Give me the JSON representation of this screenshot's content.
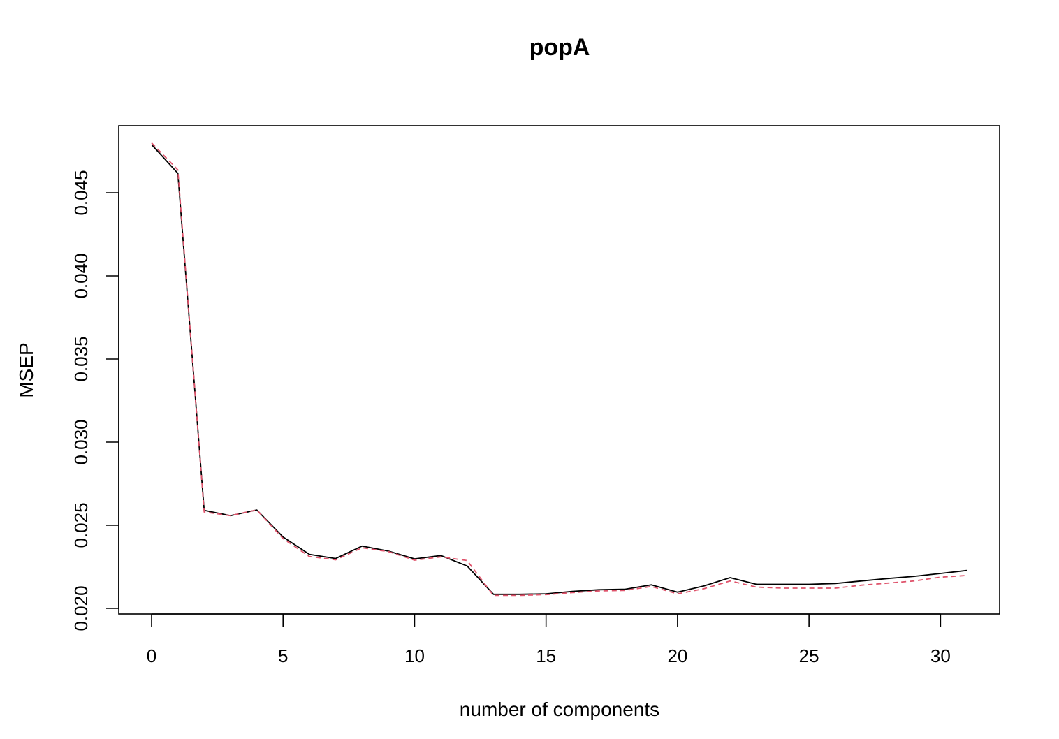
{
  "chart_data": {
    "type": "line",
    "title": "popA",
    "xlabel": "number of components",
    "ylabel": "MSEP",
    "xlim": [
      0,
      31
    ],
    "ylim": [
      0.02,
      0.048
    ],
    "x_ticks": [
      0,
      5,
      10,
      15,
      20,
      25,
      30
    ],
    "y_ticks": [
      0.02,
      0.025,
      0.03,
      0.035,
      0.04,
      0.045
    ],
    "y_tick_labels": [
      "0.020",
      "0.025",
      "0.030",
      "0.035",
      "0.040",
      "0.045"
    ],
    "grid": false,
    "legend": "none",
    "x": [
      0,
      1,
      2,
      3,
      4,
      5,
      6,
      7,
      8,
      9,
      10,
      11,
      12,
      13,
      14,
      15,
      16,
      17,
      18,
      19,
      20,
      21,
      22,
      23,
      24,
      25,
      26,
      27,
      28,
      29,
      30,
      31
    ],
    "series": [
      {
        "color": "#000000",
        "dash": "solid",
        "values": [
          0.0479,
          0.04617,
          0.0259,
          0.02558,
          0.02592,
          0.0243,
          0.02325,
          0.023,
          0.02375,
          0.02345,
          0.02298,
          0.02318,
          0.02255,
          0.02085,
          0.02085,
          0.02088,
          0.02102,
          0.02112,
          0.02115,
          0.02142,
          0.02098,
          0.02135,
          0.02185,
          0.02145,
          0.02145,
          0.02145,
          0.0215,
          0.02165,
          0.0218,
          0.02193,
          0.0221,
          0.02228
        ]
      },
      {
        "color": "#DF536B",
        "dash": "dashed",
        "values": [
          0.048,
          0.04638,
          0.0258,
          0.02558,
          0.02592,
          0.0242,
          0.02312,
          0.02292,
          0.02365,
          0.02342,
          0.0229,
          0.0231,
          0.02288,
          0.02078,
          0.02078,
          0.02083,
          0.02095,
          0.02105,
          0.02108,
          0.02132,
          0.02088,
          0.02118,
          0.02165,
          0.02128,
          0.02122,
          0.02122,
          0.02122,
          0.0214,
          0.02152,
          0.02165,
          0.02188,
          0.02198
        ]
      }
    ]
  }
}
